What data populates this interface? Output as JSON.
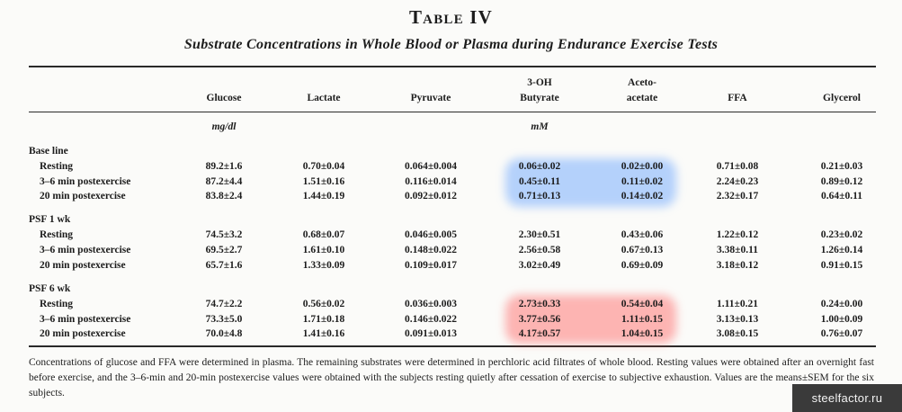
{
  "table": {
    "title": "Table IV",
    "subtitle": "Substrate Concentrations in Whole Blood or Plasma during Endurance Exercise Tests",
    "columns": [
      {
        "line1": "",
        "line2": "Glucose"
      },
      {
        "line1": "",
        "line2": "Lactate"
      },
      {
        "line1": "",
        "line2": "Pyruvate"
      },
      {
        "line1": "3-OH",
        "line2": "Butyrate"
      },
      {
        "line1": "Aceto-",
        "line2": "acetate"
      },
      {
        "line1": "",
        "line2": "FFA"
      },
      {
        "line1": "",
        "line2": "Glycerol"
      }
    ],
    "units": {
      "glucose": "mg/dl",
      "ketones": "mM"
    },
    "groups": [
      {
        "name": "Base line",
        "rows": [
          {
            "label": "Resting",
            "values": [
              "89.2±1.6",
              "0.70±0.04",
              "0.064±0.004",
              "0.06±0.02",
              "0.02±0.00",
              "0.71±0.08",
              "0.21±0.03"
            ]
          },
          {
            "label": "3–6 min postexercise",
            "values": [
              "87.2±4.4",
              "1.51±0.16",
              "0.116±0.014",
              "0.45±0.11",
              "0.11±0.02",
              "2.24±0.23",
              "0.89±0.12"
            ]
          },
          {
            "label": "20 min postexercise",
            "values": [
              "83.8±2.4",
              "1.44±0.19",
              "0.092±0.012",
              "0.71±0.13",
              "0.14±0.02",
              "2.32±0.17",
              "0.64±0.11"
            ]
          }
        ]
      },
      {
        "name": "PSF 1 wk",
        "rows": [
          {
            "label": "Resting",
            "values": [
              "74.5±3.2",
              "0.68±0.07",
              "0.046±0.005",
              "2.30±0.51",
              "0.43±0.06",
              "1.22±0.12",
              "0.23±0.02"
            ]
          },
          {
            "label": "3–6 min postexercise",
            "values": [
              "69.5±2.7",
              "1.61±0.10",
              "0.148±0.022",
              "2.56±0.58",
              "0.67±0.13",
              "3.38±0.11",
              "1.26±0.14"
            ]
          },
          {
            "label": "20 min postexercise",
            "values": [
              "65.7±1.6",
              "1.33±0.09",
              "0.109±0.017",
              "3.02±0.49",
              "0.69±0.09",
              "3.18±0.12",
              "0.91±0.15"
            ]
          }
        ]
      },
      {
        "name": "PSF 6 wk",
        "rows": [
          {
            "label": "Resting",
            "values": [
              "74.7±2.2",
              "0.56±0.02",
              "0.036±0.003",
              "2.73±0.33",
              "0.54±0.04",
              "1.11±0.21",
              "0.24±0.00"
            ]
          },
          {
            "label": "3–6 min postexercise",
            "values": [
              "73.3±5.0",
              "1.71±0.18",
              "0.146±0.022",
              "3.77±0.56",
              "1.11±0.15",
              "3.13±0.13",
              "1.00±0.09"
            ]
          },
          {
            "label": "20 min postexercise",
            "values": [
              "70.0±4.8",
              "1.41±0.16",
              "0.091±0.013",
              "4.17±0.57",
              "1.04±0.15",
              "3.08±0.15",
              "0.76±0.07"
            ]
          }
        ]
      }
    ],
    "footnote": "Concentrations of glucose and FFA were determined in plasma. The remaining substrates were determined in perchloric acid filtrates of whole blood. Resting values were obtained after an overnight fast before exercise, and the 3–6-min and 20-min postexercise values were obtained with the subjects resting quietly after cessation of exercise to subjective exhaustion. Values are the means±SEM for the six subjects.",
    "highlight_colors": {
      "blue": "#5096ff",
      "red": "#ff5050"
    }
  },
  "watermark": "steelfactor.ru"
}
